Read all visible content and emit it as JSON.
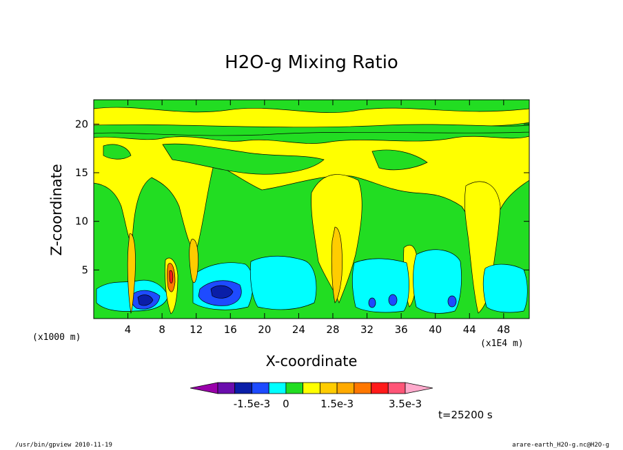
{
  "chart_data": {
    "type": "heatmap",
    "title": "H2O-g Mixing Ratio",
    "xlabel": "X-coordinate",
    "ylabel": "Z-coordinate",
    "x_unit": "(x1000 m)",
    "x_unit_secondary": "(x1E4 m)",
    "xlim": [
      0,
      51
    ],
    "ylim": [
      0,
      22.5
    ],
    "x_ticks": [
      "4",
      "8",
      "12",
      "16",
      "20",
      "24",
      "28",
      "32",
      "36",
      "40",
      "44",
      "48"
    ],
    "x_tick_values": [
      4,
      8,
      12,
      16,
      20,
      24,
      28,
      32,
      36,
      40,
      44,
      48
    ],
    "y_ticks": [
      "5",
      "10",
      "15",
      "20"
    ],
    "y_tick_values": [
      5,
      10,
      15,
      20
    ],
    "colorbar": {
      "colors": [
        "#9900aa",
        "#6a0dad",
        "#0a1ea8",
        "#1e4bff",
        "#00ffff",
        "#22dd22",
        "#ffff00",
        "#ffcc00",
        "#ffaa00",
        "#ff7700",
        "#ff1a1a",
        "#ff5577",
        "#ffaacc"
      ],
      "labels": [
        "-1.5e-3",
        "0",
        "1.5e-3",
        "3.5e-3"
      ]
    },
    "background_color": "#22dd22"
  },
  "annotation": "t=25200 s",
  "footer_left": "/usr/bin/gpview   2010-11-19",
  "footer_right": "arare-earth_H2O-g.nc@H2O-g"
}
